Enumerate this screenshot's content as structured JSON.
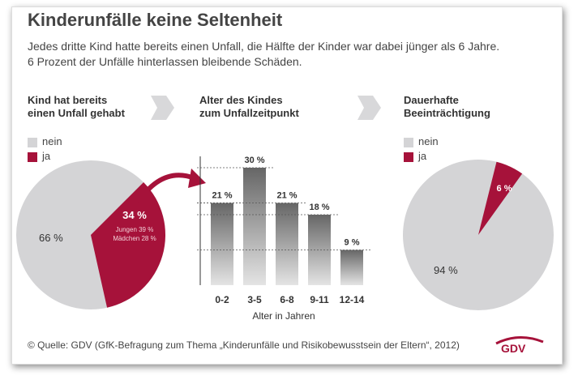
{
  "title": "Kinderunfälle keine Seltenheit",
  "subtitle_line1": "Jedes dritte Kind hatte bereits einen Unfall, die Hälfte der Kinder war dabei jünger als 6 Jahre.",
  "subtitle_line2": "6 Prozent der Unfälle hinterlassen bleibende Schäden.",
  "colors": {
    "nein": "#d4d4d6",
    "ja": "#a6123a",
    "bar": "#8a8a8a"
  },
  "chart_data": [
    {
      "type": "pie",
      "title_line1": "Kind hat bereits",
      "title_line2": "einen Unfall gehabt",
      "legend": [
        "nein",
        "ja"
      ],
      "slices": [
        {
          "label": "nein",
          "value": 66,
          "text": "66 %"
        },
        {
          "label": "ja",
          "value": 34,
          "text": "34 %",
          "detail1": "Jungen 39 %",
          "detail2": "Mädchen 28 %"
        }
      ]
    },
    {
      "type": "bar",
      "title_line1": "Alter des Kindes",
      "title_line2": "zum Unfallzeitpunkt",
      "categories": [
        "0-2",
        "3-5",
        "6-8",
        "9-11",
        "12-14"
      ],
      "values": [
        21,
        30,
        21,
        18,
        9
      ],
      "labels": [
        "21 %",
        "30 %",
        "21 %",
        "18 %",
        "9 %"
      ],
      "xlabel": "Alter in Jahren",
      "ylim": [
        0,
        33
      ]
    },
    {
      "type": "pie",
      "title_line1": "Dauerhafte",
      "title_line2": "Beeinträchtigung",
      "legend": [
        "nein",
        "ja"
      ],
      "slices": [
        {
          "label": "nein",
          "value": 94,
          "text": "94 %"
        },
        {
          "label": "ja",
          "value": 6,
          "text": "6 %"
        }
      ]
    }
  ],
  "source": "© Quelle: GDV (GfK-Befragung zum Thema „Kinderunfälle und Risikobewusstsein der Eltern“, 2012)",
  "logo": "GDV"
}
